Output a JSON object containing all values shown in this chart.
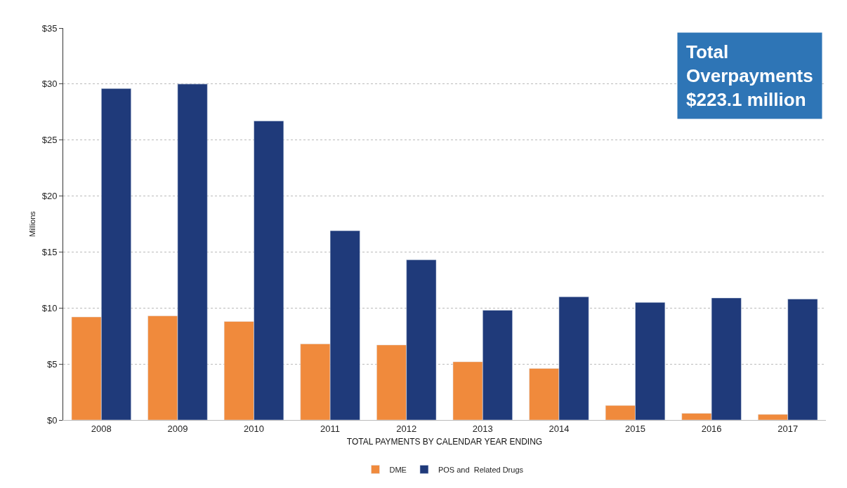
{
  "chart_data": {
    "type": "bar",
    "xlabel": "TOTAL PAYMENTS BY CALENDAR YEAR ENDING",
    "ylabel": "Millions",
    "categories": [
      "2008",
      "2009",
      "2010",
      "2011",
      "2012",
      "2013",
      "2014",
      "2015",
      "2016",
      "2017"
    ],
    "series": [
      {
        "name": "DME",
        "color": "#f08a3c",
        "values": [
          9.2,
          9.3,
          8.8,
          6.8,
          6.7,
          5.2,
          4.6,
          1.3,
          0.6,
          0.5
        ]
      },
      {
        "name": "POS and  Related Drugs",
        "color": "#1f3a7a",
        "values": [
          29.6,
          30.0,
          26.7,
          16.9,
          14.3,
          9.8,
          11.0,
          10.5,
          10.9,
          10.8
        ]
      }
    ],
    "ylim": [
      0,
      35
    ],
    "yticks": [
      {
        "value": 0,
        "label": "$0"
      },
      {
        "value": 5,
        "label": "$5"
      },
      {
        "value": 10,
        "label": "$10"
      },
      {
        "value": 15,
        "label": "$15"
      },
      {
        "value": 20,
        "label": "$20"
      },
      {
        "value": 25,
        "label": "$25"
      },
      {
        "value": 30,
        "label": "$30"
      },
      {
        "value": 35,
        "label": "$35"
      }
    ],
    "grid": "y",
    "legend": "bottom",
    "annotations": [
      "Total\nOverpayments\n$223.1 million"
    ]
  }
}
